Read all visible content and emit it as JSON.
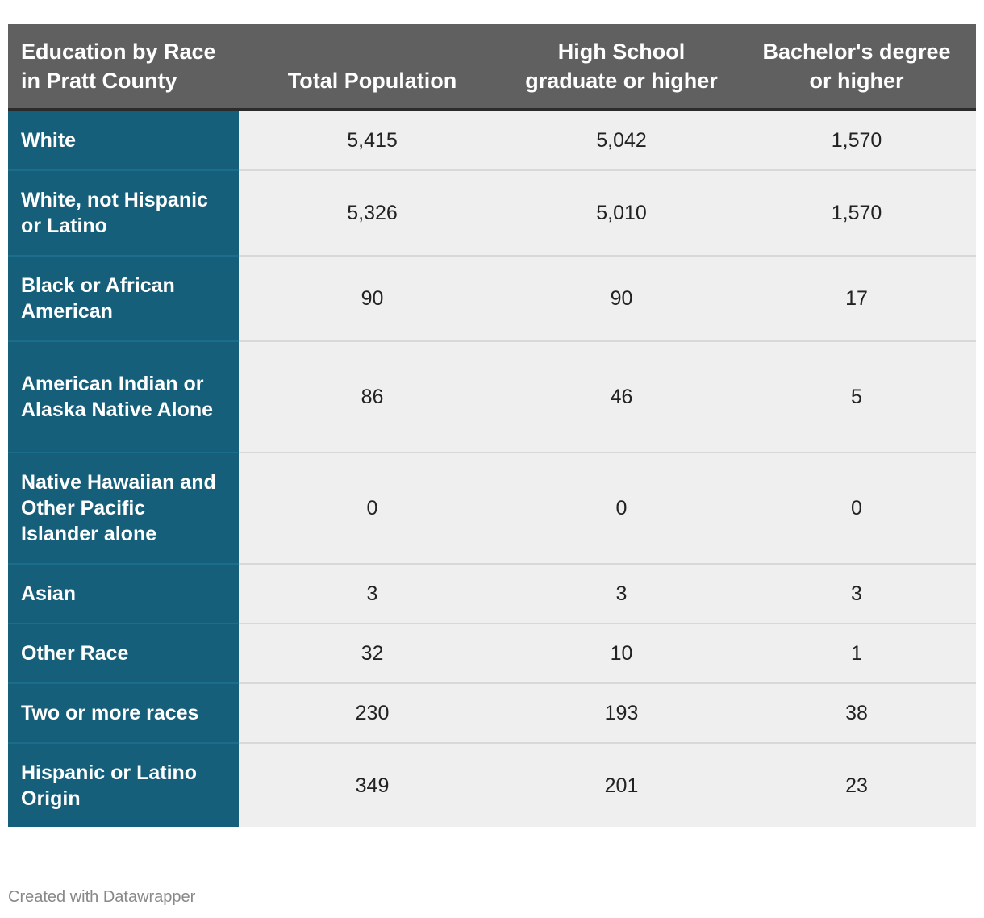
{
  "chart_data": {
    "type": "table",
    "title": "",
    "columns": [
      "Education by Race in Pratt County",
      "Total Population",
      "High School graduate or higher",
      "Bachelor's degree or higher"
    ],
    "rows": [
      {
        "label": "White",
        "values": [
          "5,415",
          "5,042",
          "1,570"
        ]
      },
      {
        "label": "White, not Hispanic or Latino",
        "values": [
          "5,326",
          "5,010",
          "1,570"
        ]
      },
      {
        "label": "Black or African American",
        "values": [
          "90",
          "90",
          "17"
        ]
      },
      {
        "label": "American Indian or Alaska Native Alone",
        "values": [
          "86",
          "46",
          "5"
        ]
      },
      {
        "label": "Native Hawaiian and Other Pacific Islander alone",
        "values": [
          "0",
          "0",
          "0"
        ]
      },
      {
        "label": "Asian",
        "values": [
          "3",
          "3",
          "3"
        ]
      },
      {
        "label": "Other Race",
        "values": [
          "32",
          "10",
          "1"
        ]
      },
      {
        "label": "Two or more races",
        "values": [
          "230",
          "193",
          "38"
        ]
      },
      {
        "label": "Hispanic or Latino Origin",
        "values": [
          "349",
          "201",
          "23"
        ]
      }
    ]
  },
  "colors": {
    "header_bg": "#606060",
    "label_column_bg": "#165f7a",
    "value_cell_bg": "#efefef"
  },
  "footer": {
    "credit": "Created with Datawrapper"
  }
}
